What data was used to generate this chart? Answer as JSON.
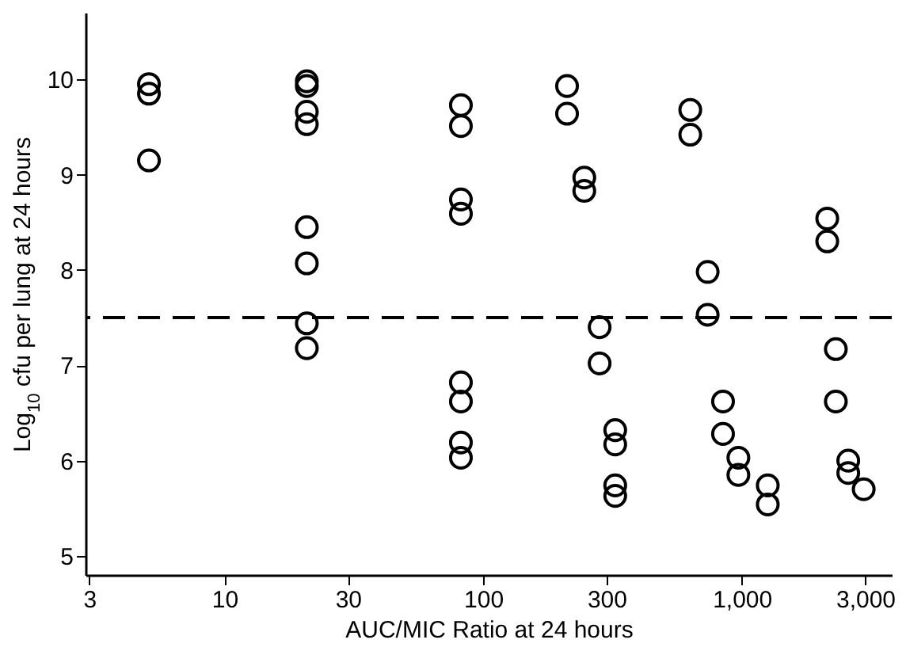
{
  "chart_data": {
    "type": "scatter",
    "xlabel": "AUC/MIC Ratio at 24 hours",
    "ylabel": "Log$_{10}$ cfu per lung at 24 hours",
    "log": "x",
    "grid": false,
    "legend": false,
    "marker": "circle",
    "xlim": [
      2.9,
      3800
    ],
    "xticks": [
      3,
      10,
      30,
      100,
      300,
      {
        "value": 1000,
        "label": "1,000"
      },
      {
        "value": 3000,
        "label": "3,000"
      }
    ],
    "ylim": [
      4.8,
      10.7
    ],
    "yticks": [
      5,
      6,
      7,
      8,
      9,
      10
    ],
    "ref_lines": [
      {
        "axis": "y",
        "value": 7.5,
        "line_style": "dashed"
      }
    ],
    "series": [
      {
        "color": "#000000",
        "x": [
          5.1,
          5.1,
          5.1,
          20.8,
          20.8,
          20.8,
          20.8,
          20.8,
          20.8,
          20.8,
          20.8,
          82,
          82,
          82,
          82,
          82,
          82,
          82,
          82,
          211,
          211,
          246,
          246,
          282,
          282,
          324,
          324,
          324,
          324,
          632,
          632,
          738,
          738,
          846,
          846,
          970,
          970,
          1260,
          1260,
          2140,
          2140,
          2310,
          2310,
          2580,
          2580,
          2960
        ],
        "values": [
          9.95,
          9.85,
          9.15,
          9.98,
          9.93,
          9.66,
          9.53,
          8.45,
          8.07,
          7.44,
          7.18,
          9.73,
          9.51,
          8.74,
          8.59,
          6.82,
          6.62,
          6.19,
          6.03,
          9.93,
          9.64,
          8.97,
          8.83,
          7.4,
          7.02,
          6.32,
          6.17,
          5.74,
          5.63,
          9.68,
          9.42,
          7.98,
          7.53,
          6.62,
          6.28,
          6.03,
          5.85,
          5.74,
          5.54,
          8.54,
          8.3,
          7.17,
          6.62,
          6.0,
          5.87,
          5.7
        ]
      }
    ]
  }
}
